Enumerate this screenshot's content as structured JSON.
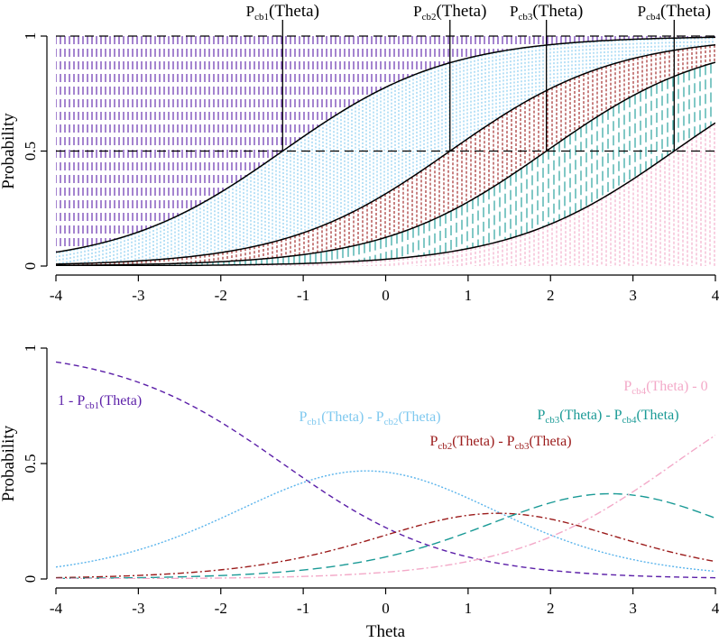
{
  "chart_data": [
    {
      "type": "line",
      "panel": "top",
      "title": "",
      "xlabel": "",
      "ylabel": "Probability",
      "xlim": [
        -4,
        4
      ],
      "ylim": [
        0,
        1
      ],
      "xticks": [
        "-4",
        "-3",
        "-2",
        "-1",
        "0",
        "1",
        "2",
        "3",
        "4"
      ],
      "yticks": [
        "0",
        "0.5",
        "1"
      ],
      "reference_line": {
        "y": 0.5,
        "style": "dashed"
      },
      "model": "logistic: P(theta) = 1 / (1 + exp(-(theta - b)))",
      "series": [
        {
          "name": "Pcb1(Theta)",
          "b": -1.25
        },
        {
          "name": "Pcb2(Theta)",
          "b": 0.78
        },
        {
          "name": "Pcb3(Theta)",
          "b": 1.95
        },
        {
          "name": "Pcb4(Theta)",
          "b": 3.5
        }
      ],
      "labels": [
        {
          "base": "P",
          "sub": "cb1",
          "rest": "(Theta)"
        },
        {
          "base": "P",
          "sub": "cb2",
          "rest": "(Theta)"
        },
        {
          "base": "P",
          "sub": "cb3",
          "rest": "(Theta)"
        },
        {
          "base": "P",
          "sub": "cb4",
          "rest": "(Theta)"
        }
      ],
      "band_colors": [
        "#5b1fa8",
        "#7ec8ef",
        "#9b1b1b",
        "#1a9a96",
        "#f3a9c8"
      ]
    },
    {
      "type": "line",
      "panel": "bottom",
      "title": "",
      "xlabel": "Theta",
      "ylabel": "Probability",
      "xlim": [
        -4,
        4
      ],
      "ylim": [
        0,
        1
      ],
      "xticks": [
        "-4",
        "-3",
        "-2",
        "-1",
        "0",
        "1",
        "2",
        "3",
        "4"
      ],
      "yticks": [
        "0",
        "0.5",
        "1"
      ],
      "series": [
        {
          "name": "1 - Pcb1(Theta)",
          "color": "#5b1fa8",
          "dash": "6,4"
        },
        {
          "name": "Pcb1(Theta) - Pcb2(Theta)",
          "color": "#5ab4ec",
          "dash": "2,2"
        },
        {
          "name": "Pcb2(Theta) - Pcb3(Theta)",
          "color": "#9b1b1b",
          "dash": "7,3,2,3"
        },
        {
          "name": "Pcb3(Theta) - Pcb4(Theta)",
          "color": "#1a9a96",
          "dash": "10,5"
        },
        {
          "name": "Pcb4(Theta) - 0",
          "color": "#f3a9c8",
          "dash": "8,3,2,3"
        }
      ],
      "labels": [
        {
          "parts": [
            {
              "t": "1 - P"
            },
            {
              "t": "cb1",
              "sub": true
            },
            {
              "t": "(Theta)"
            }
          ],
          "color": "#5b1fa8"
        },
        {
          "parts": [
            {
              "t": "P"
            },
            {
              "t": "cb1",
              "sub": true
            },
            {
              "t": "(Theta) - P"
            },
            {
              "t": "cb2",
              "sub": true
            },
            {
              "t": "(Theta)"
            }
          ],
          "color": "#7ec8ef"
        },
        {
          "parts": [
            {
              "t": "P"
            },
            {
              "t": "cb2",
              "sub": true
            },
            {
              "t": "(Theta) - P"
            },
            {
              "t": "cb3",
              "sub": true
            },
            {
              "t": "(Theta)"
            }
          ],
          "color": "#9b1b1b"
        },
        {
          "parts": [
            {
              "t": "P"
            },
            {
              "t": "cb3",
              "sub": true
            },
            {
              "t": "(Theta) - P"
            },
            {
              "t": "cb4",
              "sub": true
            },
            {
              "t": "(Theta)"
            }
          ],
          "color": "#1a9a96"
        },
        {
          "parts": [
            {
              "t": "P"
            },
            {
              "t": "cb4",
              "sub": true
            },
            {
              "t": "(Theta) - 0"
            }
          ],
          "color": "#f3a9c8"
        }
      ]
    }
  ]
}
